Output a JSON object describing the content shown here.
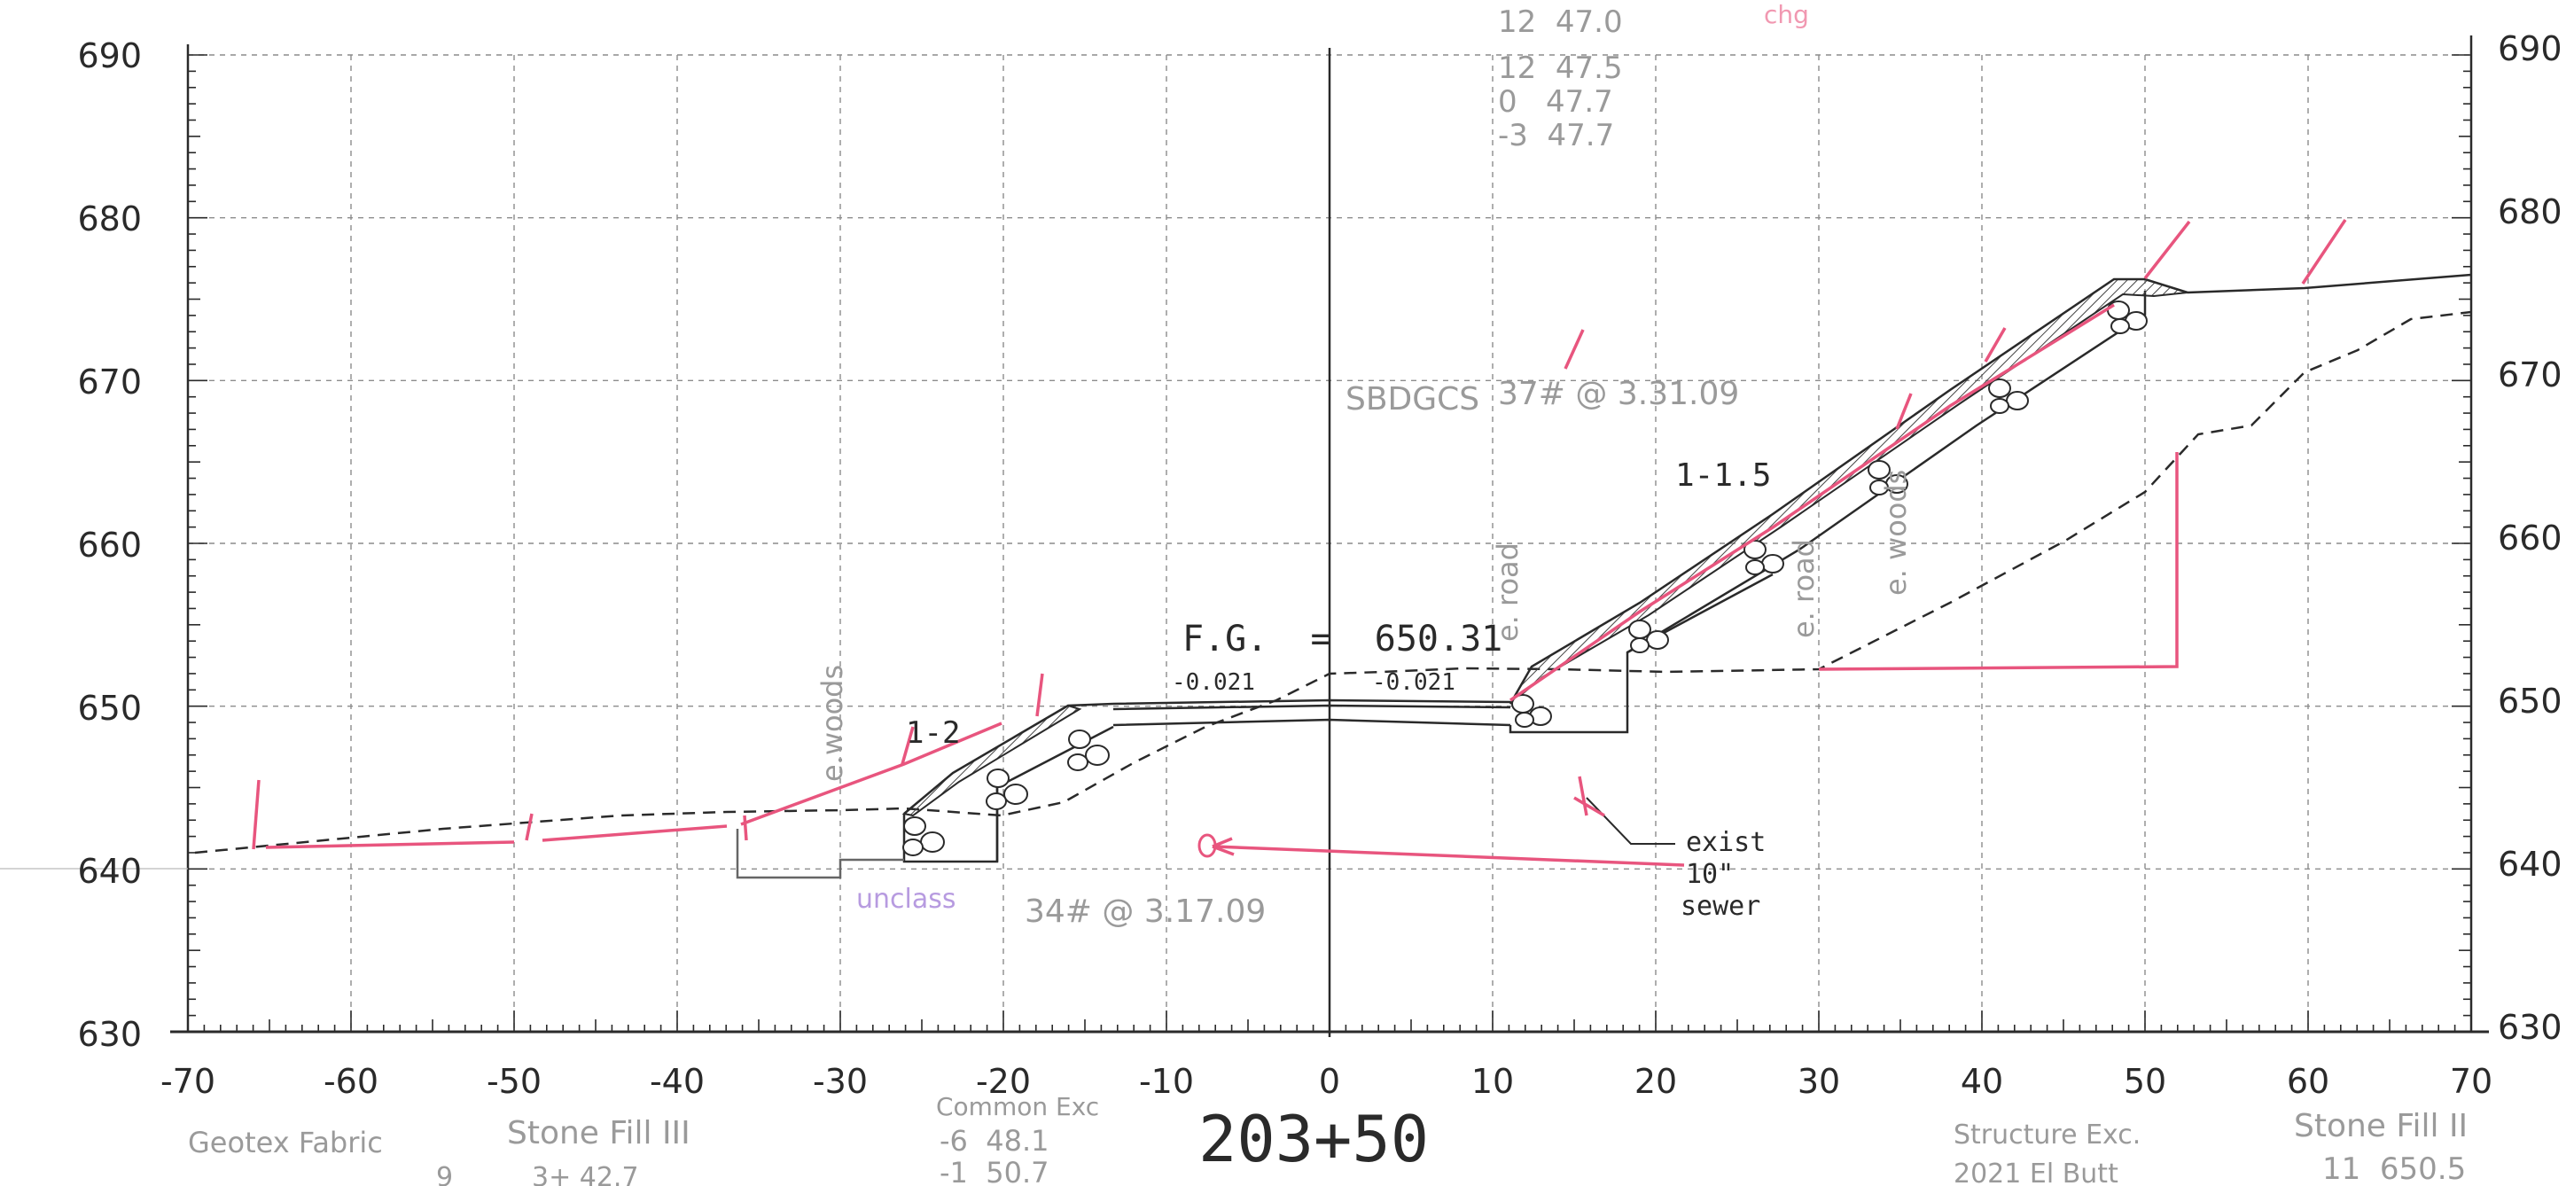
{
  "sheet": {
    "station": "203+50",
    "x_ticks": [
      "-70",
      "-60",
      "-50",
      "-40",
      "-30",
      "-20",
      "-10",
      "0",
      "10",
      "20",
      "30",
      "40",
      "50",
      "60",
      "70"
    ],
    "y_ticks": [
      "690",
      "680",
      "670",
      "660",
      "650",
      "640",
      "630"
    ],
    "colors": {
      "ink": "#2a2a2a",
      "grid": "#8c8c8c",
      "pencil": "#9a9a9a",
      "red_pencil": "#e8557e",
      "purple": "#b79be0"
    }
  },
  "labels": {
    "fg": "F.G.  =  650.31",
    "slope_left": "-0.021",
    "slope_right": "-0.021",
    "slope_12": "1-2",
    "slope_115": "1-1.5",
    "e_woods_left": "e.woods",
    "e_road_left": "e. road",
    "e_road_right": "e. road",
    "e_woods_right": "e. woods",
    "exist": "exist",
    "ten_inch": "10\"",
    "sewer": "sewer"
  },
  "annotations": {
    "top_values": [
      "12  47.0",
      "12  47.5",
      "0   47.7",
      "-3  47.7"
    ],
    "sbdgcs": "SBDGCS",
    "sbdgcs_note": "37# @ 3.31.09",
    "left_note": "34# @ 3.17.09",
    "purple_note": "unclass",
    "bottom_1": "Geotex Fabric",
    "bottom_2": "Stone Fill III",
    "bottom_3": "Common Exc",
    "bottom_3b": "-6  48.1",
    "bottom_3c": "-1  50.7",
    "bottom_4": "Structure Exc.",
    "bottom_4b": "2021 El Butt",
    "bottom_5": "Stone Fill II",
    "bottom_5b": "11  650.5",
    "bottom_6": "9",
    "bottom_7": "3+ 42.7",
    "top_right_scribble": "chg"
  }
}
